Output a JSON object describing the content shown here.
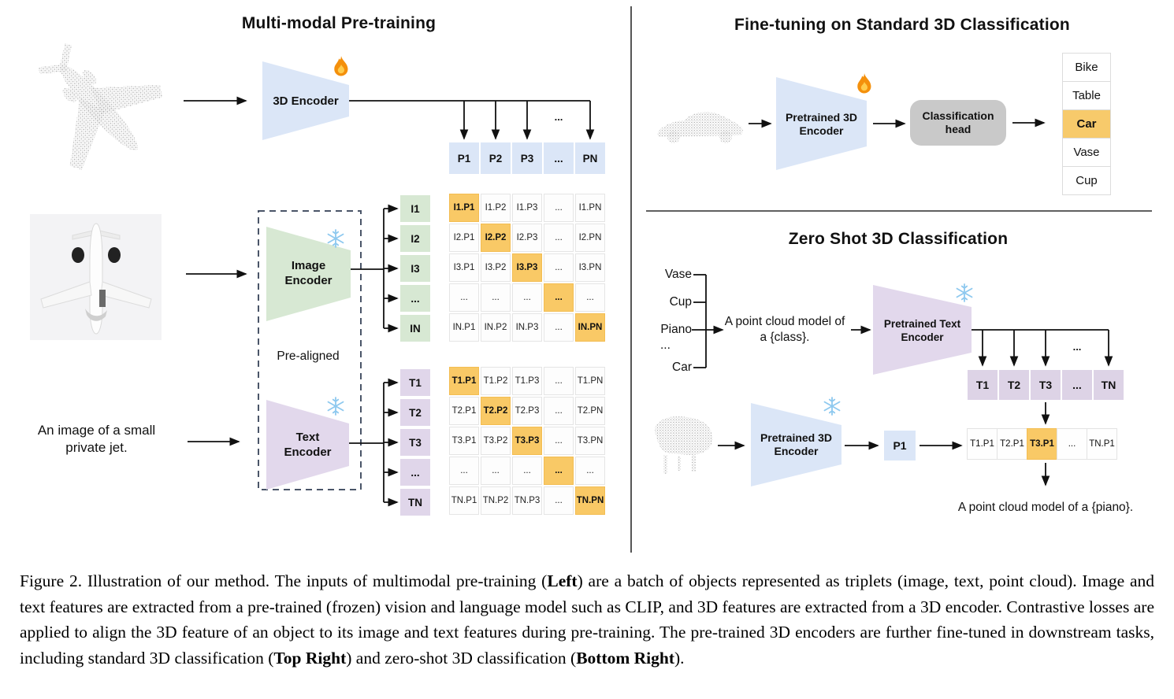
{
  "left": {
    "title": "Multi-modal Pre-training",
    "encoder_3d_label": "3D Encoder",
    "image_encoder": {
      "line1": "Image",
      "line2": "Encoder"
    },
    "text_encoder": {
      "line1": "Text",
      "line2": "Encoder"
    },
    "pre_aligned": "Pre-aligned",
    "image_caption": {
      "line1": "An image of a small",
      "line2": "private jet."
    },
    "dots": "...",
    "p_row": [
      "P1",
      "P2",
      "P3",
      "...",
      "PN"
    ],
    "i_col": [
      "I1",
      "I2",
      "I3",
      "...",
      "IN"
    ],
    "t_col": [
      "T1",
      "T2",
      "T3",
      "...",
      "TN"
    ],
    "i_matrix": [
      [
        {
          "t": "I1.P1",
          "hl": true
        },
        {
          "t": "I1.P2"
        },
        {
          "t": "I1.P3"
        },
        {
          "t": "..."
        },
        {
          "t": "I1.PN"
        }
      ],
      [
        {
          "t": "I2.P1"
        },
        {
          "t": "I2.P2",
          "hl": true
        },
        {
          "t": "I2.P3"
        },
        {
          "t": "..."
        },
        {
          "t": "I2.PN"
        }
      ],
      [
        {
          "t": "I3.P1"
        },
        {
          "t": "I3.P2"
        },
        {
          "t": "I3.P3",
          "hl": true
        },
        {
          "t": "..."
        },
        {
          "t": "I3.PN"
        }
      ],
      [
        {
          "t": "..."
        },
        {
          "t": "..."
        },
        {
          "t": "..."
        },
        {
          "t": "...",
          "hl": true
        },
        {
          "t": "..."
        }
      ],
      [
        {
          "t": "IN.P1"
        },
        {
          "t": "IN.P2"
        },
        {
          "t": "IN.P3"
        },
        {
          "t": "..."
        },
        {
          "t": "IN.PN",
          "hl": true
        }
      ]
    ],
    "t_matrix": [
      [
        {
          "t": "T1.P1",
          "hl": true
        },
        {
          "t": "T1.P2"
        },
        {
          "t": "T1.P3"
        },
        {
          "t": "..."
        },
        {
          "t": "T1.PN"
        }
      ],
      [
        {
          "t": "T2.P1"
        },
        {
          "t": "T2.P2",
          "hl": true
        },
        {
          "t": "T2.P3"
        },
        {
          "t": "..."
        },
        {
          "t": "T2.PN"
        }
      ],
      [
        {
          "t": "T3.P1"
        },
        {
          "t": "T3.P2"
        },
        {
          "t": "T3.P3",
          "hl": true
        },
        {
          "t": "..."
        },
        {
          "t": "T3.PN"
        }
      ],
      [
        {
          "t": "..."
        },
        {
          "t": "..."
        },
        {
          "t": "..."
        },
        {
          "t": "...",
          "hl": true
        },
        {
          "t": "..."
        }
      ],
      [
        {
          "t": "TN.P1"
        },
        {
          "t": "TN.P2"
        },
        {
          "t": "TN.P3"
        },
        {
          "t": "..."
        },
        {
          "t": "TN.PN",
          "hl": true
        }
      ]
    ]
  },
  "right_top": {
    "title": "Fine-tuning on Standard 3D Classification",
    "encoder": {
      "line1": "Pretrained 3D",
      "line2": "Encoder"
    },
    "head": {
      "line1": "Classification",
      "line2": "head"
    },
    "classes": [
      {
        "t": "Bike"
      },
      {
        "t": "Table"
      },
      {
        "t": "Car",
        "hl": true
      },
      {
        "t": "Vase"
      },
      {
        "t": "Cup"
      }
    ]
  },
  "right_bottom": {
    "title": "Zero Shot 3D Classification",
    "inputs": {
      "item1": "Vase",
      "item2": "Cup",
      "item3": "Piano",
      "item4": "...",
      "item5": "Car"
    },
    "prompt": {
      "line1": "A point cloud model of",
      "line2": "a {class}."
    },
    "text_encoder": {
      "line1": "Pretrained Text",
      "line2": "Encoder"
    },
    "encoder_3d": {
      "line1": "Pretrained 3D",
      "line2": "Encoder"
    },
    "p1": "P1",
    "dots": "...",
    "t_row": [
      {
        "t": "T1"
      },
      {
        "t": "T2"
      },
      {
        "t": "T3"
      },
      {
        "t": "..."
      },
      {
        "t": "TN"
      }
    ],
    "tp_row": [
      {
        "t": "T1.P1"
      },
      {
        "t": "T2.P1"
      },
      {
        "t": "T3.P1",
        "hl": true
      },
      {
        "t": "..."
      },
      {
        "t": "TN.P1"
      }
    ],
    "result_text": "A point cloud model of a {piano}."
  },
  "caption": {
    "segments": [
      {
        "t": "Figure 2. Illustration of our method. The inputs of multimodal pre-training ("
      },
      {
        "t": "Left",
        "b": true
      },
      {
        "t": ") are a batch of objects represented as triplets (image, text, point cloud). Image and text features are extracted from a pre-trained (frozen) vision and language model such as CLIP, and 3D features are extracted from a 3D encoder. Contrastive losses are applied to align the 3D feature of an object to its image and text features during pre-training. The pre-trained 3D encoders are further fine-tuned in downstream tasks, including standard 3D classification ("
      },
      {
        "t": "Top Right",
        "b": true
      },
      {
        "t": ") and zero-shot 3D classification ("
      },
      {
        "t": "Bottom Right",
        "b": true
      },
      {
        "t": ")."
      }
    ]
  },
  "colors": {
    "encoder_blue": "#dbe6f7",
    "encoder_green": "#d7e8d3",
    "encoder_purple": "#e2d8ec",
    "highlight_orange": "#f9c966",
    "head_gray": "#c9c9c9",
    "point_cloud_gray": "#a8a8a8",
    "flame_orange": "#f4900c",
    "snowflake_blue": "#8ec9ef"
  }
}
